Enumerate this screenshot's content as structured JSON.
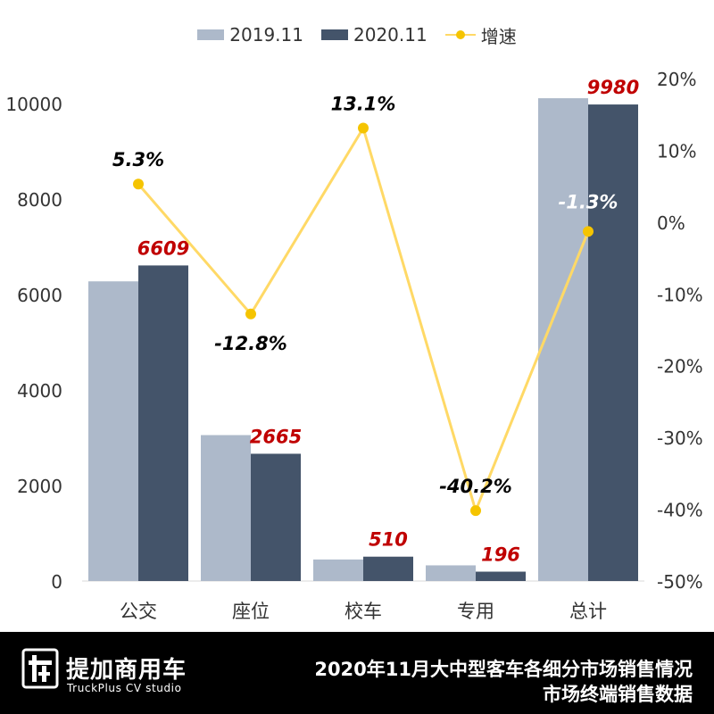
{
  "chart_data": {
    "type": "bar",
    "categories": [
      "公交",
      "座位",
      "校车",
      "专用",
      "总计"
    ],
    "series": [
      {
        "name": "2019.11",
        "values": [
          6276,
          3056,
          451,
          328,
          10111
        ],
        "color": "#adb9ca"
      },
      {
        "name": "2020.11",
        "values": [
          6609,
          2665,
          510,
          196,
          9980
        ],
        "color": "#44546a",
        "labels": [
          "6609",
          "2665",
          "510",
          "196",
          "9980"
        ]
      }
    ],
    "line_series": {
      "name": "增速",
      "values": [
        5.3,
        -12.8,
        13.1,
        -40.2,
        -1.3
      ],
      "labels": [
        "5.3%",
        "-12.8%",
        "13.1%",
        "-40.2%",
        "-1.3%"
      ],
      "color": "#ffd966",
      "marker_color": "#f5c400",
      "axis": "right"
    },
    "y_left": {
      "min": 0,
      "max": 10000,
      "ticks": [
        "0",
        "2000",
        "4000",
        "6000",
        "8000",
        "10000"
      ]
    },
    "y_right": {
      "min": -50,
      "max": 20,
      "ticks": [
        "-50%",
        "-40%",
        "-30%",
        "-20%",
        "-10%",
        "0%",
        "10%",
        "20%"
      ]
    },
    "legend_position": "top-center",
    "grid": true
  },
  "legend": {
    "series1": "2019.11",
    "series2": "2020.11",
    "line": "增速"
  },
  "footer": {
    "logo_cn": "提加商用车",
    "logo_en": "TruckPlus CV studio",
    "title": "2020年11月大中型客车各细分市场销售情况",
    "subtitle": "市场终端销售数据"
  }
}
